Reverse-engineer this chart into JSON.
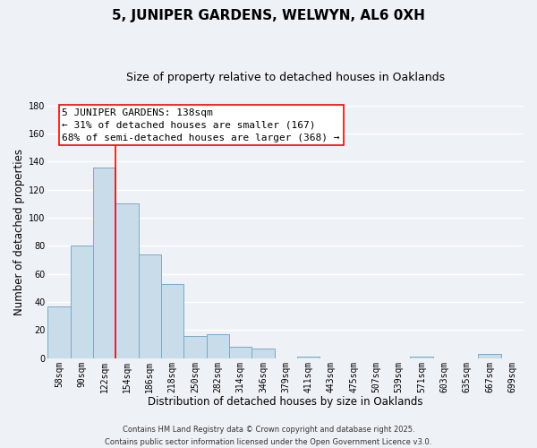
{
  "title": "5, JUNIPER GARDENS, WELWYN, AL6 0XH",
  "subtitle": "Size of property relative to detached houses in Oaklands",
  "xlabel": "Distribution of detached houses by size in Oaklands",
  "ylabel": "Number of detached properties",
  "bar_color": "#c8dcea",
  "bar_edge_color": "#7aaac8",
  "categories": [
    "58sqm",
    "90sqm",
    "122sqm",
    "154sqm",
    "186sqm",
    "218sqm",
    "250sqm",
    "282sqm",
    "314sqm",
    "346sqm",
    "379sqm",
    "411sqm",
    "443sqm",
    "475sqm",
    "507sqm",
    "539sqm",
    "571sqm",
    "603sqm",
    "635sqm",
    "667sqm",
    "699sqm"
  ],
  "values": [
    37,
    80,
    136,
    110,
    74,
    53,
    16,
    17,
    8,
    7,
    0,
    1,
    0,
    0,
    0,
    0,
    1,
    0,
    0,
    3,
    0
  ],
  "ylim": [
    0,
    180
  ],
  "yticks": [
    0,
    20,
    40,
    60,
    80,
    100,
    120,
    140,
    160,
    180
  ],
  "property_line_x": 2.5,
  "property_line_label": "5 JUNIPER GARDENS: 138sqm",
  "annotation_line1": "← 31% of detached houses are smaller (167)",
  "annotation_line2": "68% of semi-detached houses are larger (368) →",
  "footnote1": "Contains HM Land Registry data © Crown copyright and database right 2025.",
  "footnote2": "Contains public sector information licensed under the Open Government Licence v3.0.",
  "background_color": "#eef2f7",
  "grid_color": "#ffffff",
  "title_fontsize": 11,
  "subtitle_fontsize": 9,
  "axis_label_fontsize": 8.5,
  "tick_fontsize": 7,
  "annotation_fontsize": 8,
  "footnote_fontsize": 6
}
